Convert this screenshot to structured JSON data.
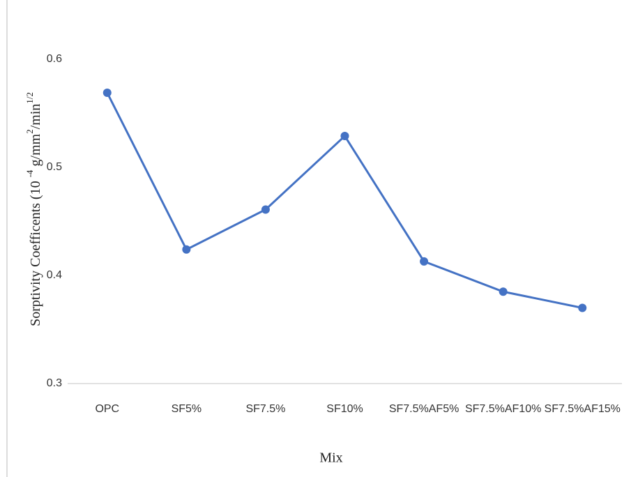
{
  "chart_data": {
    "type": "line",
    "y_label": [
      "Sorptivity Coefficents (10 ",
      "-4",
      " g/mm",
      "2",
      "/min",
      "1/2"
    ],
    "x_label": "Mix",
    "categories": [
      "OPC",
      "SF5%",
      "SF7.5%",
      "SF10%",
      "SF7.5%AF5%",
      "SF7.5%AF10%",
      "SF7.5%AF15%"
    ],
    "series": [
      {
        "name": "Sorptivity",
        "color": "#4472c4",
        "values": [
          0.569,
          0.424,
          0.461,
          0.529,
          0.413,
          0.385,
          0.37
        ]
      }
    ],
    "ylim": [
      0.3,
      0.6
    ],
    "yticks": [
      0.3,
      0.4,
      0.5,
      0.6
    ]
  }
}
